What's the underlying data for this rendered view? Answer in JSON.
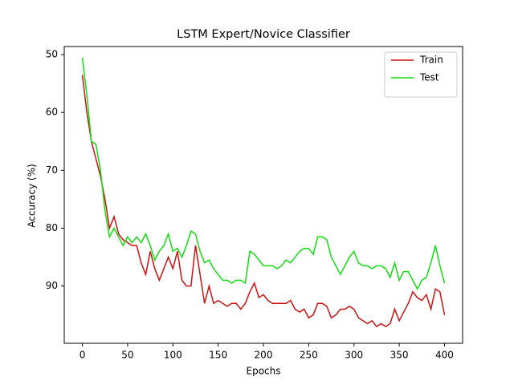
{
  "chart_data": {
    "type": "line",
    "title": "LSTM Expert/Novice Classifier",
    "x_label": "Epochs",
    "y_label": "Accuracy (%)",
    "x": [
      0,
      5,
      10,
      15,
      20,
      25,
      30,
      35,
      40,
      45,
      50,
      55,
      60,
      65,
      70,
      75,
      80,
      85,
      90,
      95,
      100,
      105,
      110,
      115,
      120,
      125,
      130,
      135,
      140,
      145,
      150,
      155,
      160,
      165,
      170,
      175,
      180,
      185,
      190,
      195,
      200,
      205,
      210,
      215,
      220,
      225,
      230,
      235,
      240,
      245,
      250,
      255,
      260,
      265,
      270,
      275,
      280,
      285,
      290,
      295,
      300,
      305,
      310,
      315,
      320,
      325,
      330,
      335,
      340,
      345,
      350,
      355,
      360,
      365,
      370,
      375,
      380,
      385,
      390,
      395,
      400
    ],
    "series": [
      {
        "name": "Train",
        "color": "#cc1111",
        "values": [
          53.5,
          60,
          65,
          68,
          71,
          75,
          80,
          78,
          81,
          82,
          82.5,
          83,
          83,
          86,
          88,
          84,
          87,
          89,
          87,
          85,
          87,
          84,
          89,
          90,
          90,
          83,
          88,
          93,
          90,
          93,
          92.5,
          93,
          93.5,
          93,
          93,
          94,
          93,
          91,
          89.5,
          92,
          91.5,
          92.5,
          93,
          93,
          93,
          93,
          92.5,
          94,
          94.5,
          94,
          95.5,
          95,
          93,
          93,
          93.5,
          95.5,
          95,
          94,
          94,
          93.5,
          94,
          95.5,
          96,
          96.5,
          96,
          97,
          96.5,
          97,
          96.5,
          94,
          96,
          94.5,
          93,
          91,
          92,
          92.5,
          91.5,
          94,
          90.5,
          91,
          95
        ]
      },
      {
        "name": "Test",
        "color": "#11dd11",
        "values": [
          50.5,
          57,
          65,
          65.5,
          70,
          77,
          81.5,
          80,
          81.5,
          83,
          81.5,
          82.5,
          81.5,
          82.5,
          81,
          83,
          85.5,
          84,
          83,
          81,
          84,
          83.5,
          85,
          83,
          80.5,
          81,
          84,
          86,
          85.5,
          87,
          88,
          89,
          89,
          89.5,
          89,
          89,
          89.5,
          84,
          84.5,
          85.5,
          86.5,
          86.5,
          86.5,
          87,
          86.5,
          85.5,
          86,
          85,
          84,
          83.5,
          83.5,
          84.5,
          81.5,
          81.5,
          82,
          85,
          86.5,
          88,
          86.5,
          85,
          84,
          86,
          86.5,
          86.5,
          87,
          86.5,
          86.5,
          87,
          88.5,
          86,
          89,
          87.5,
          87.5,
          89,
          90.5,
          89,
          88.5,
          86,
          83,
          86.5,
          89.5
        ]
      }
    ],
    "xlim": [
      -20,
      420
    ],
    "ylim": [
      99.9,
      48.6
    ],
    "xticks": [
      0,
      50,
      100,
      150,
      200,
      250,
      300,
      350,
      400
    ],
    "yticks": [
      50,
      60,
      70,
      80,
      90
    ],
    "legend": "upper right"
  }
}
